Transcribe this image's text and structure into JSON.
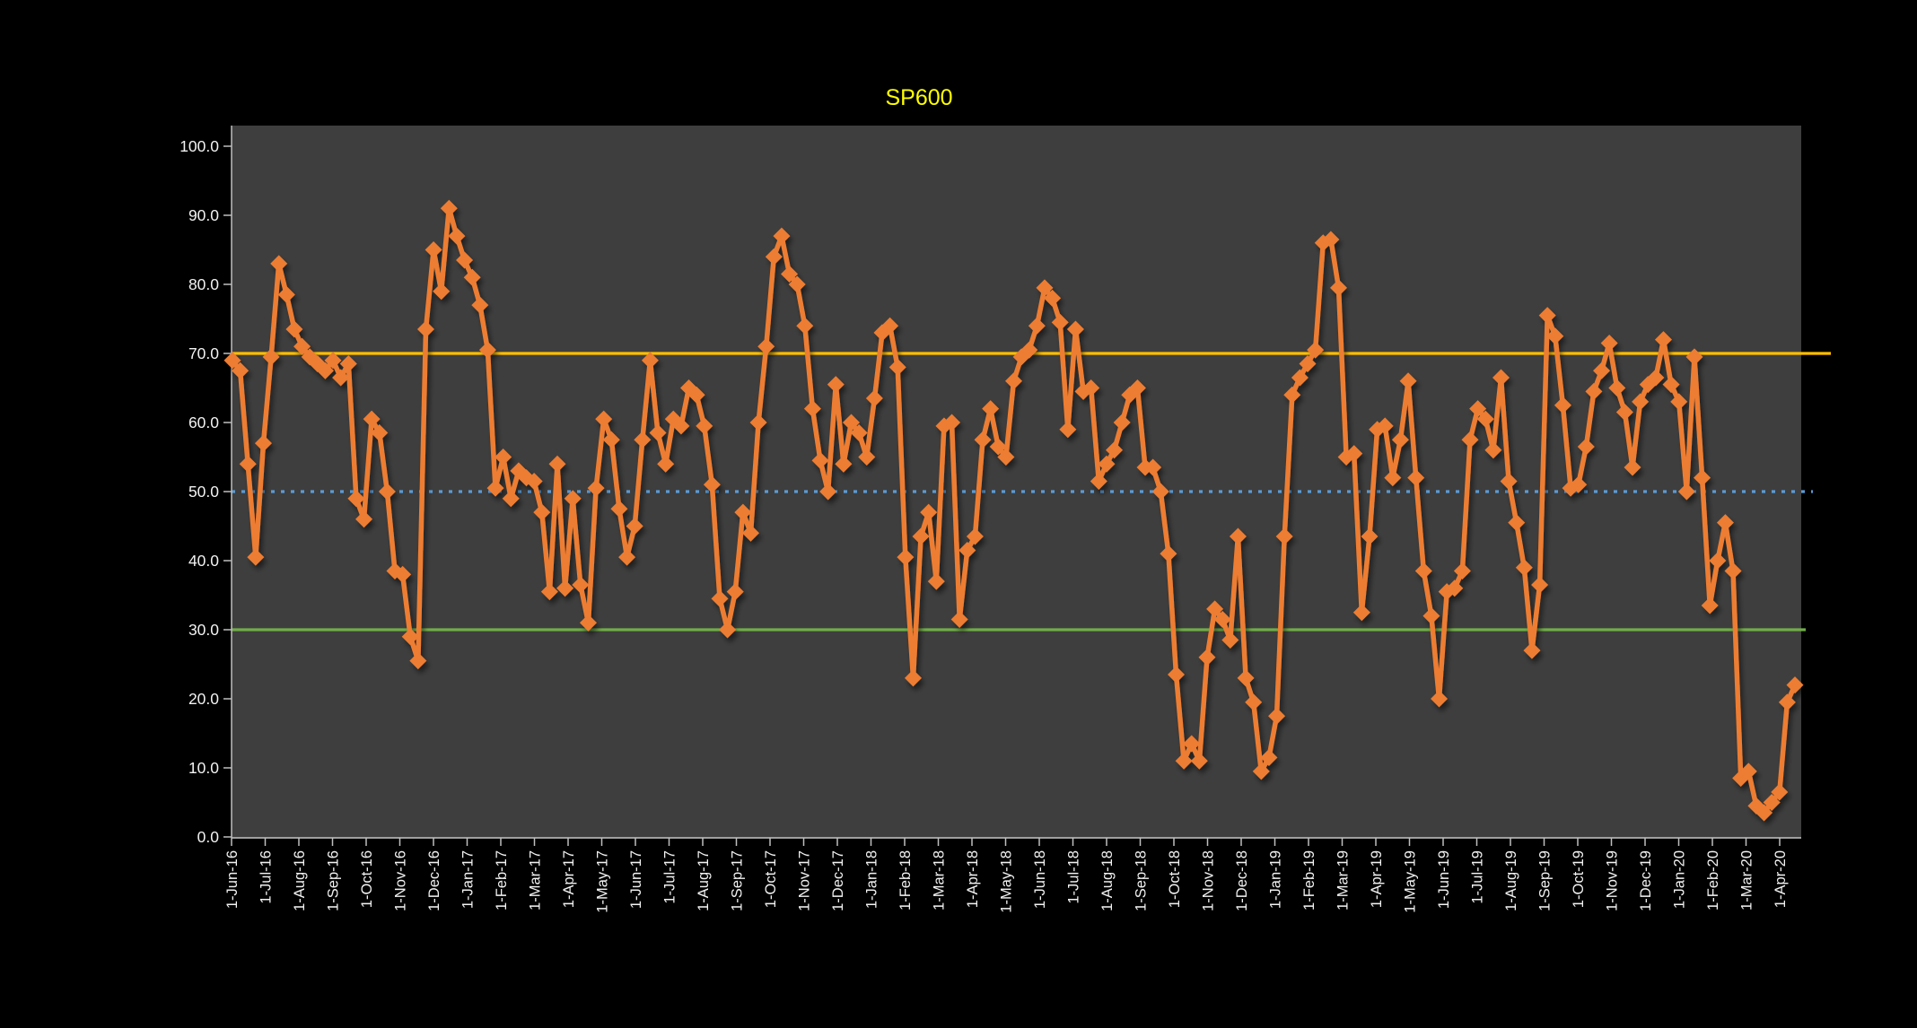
{
  "title": {
    "text": "SP600",
    "color": "#FFFF00"
  },
  "colors": {
    "outer_background": "#000000",
    "plot_background": "#3E3E3E",
    "series_line": "#ED7D31",
    "ref_line_upper": "#FFC000",
    "ref_line_mid": "#5B9BD5",
    "ref_line_lower": "#70AD47",
    "axis_line": "#BFBFBF",
    "tick_label": "#F2F2F2"
  },
  "chart_data": {
    "type": "line",
    "title": "SP600",
    "xlabel": "",
    "ylabel": "",
    "ylim": [
      0,
      100
    ],
    "grid": false,
    "legend_position": "none",
    "marker": "diamond",
    "frequency": "weekly",
    "x_range_labels": [
      "1-Jun-16",
      "1-Apr-20"
    ],
    "y_tick_labels": [
      "0.0",
      "10.0",
      "20.0",
      "30.0",
      "40.0",
      "50.0",
      "60.0",
      "70.0",
      "80.0",
      "90.0",
      "100.0"
    ],
    "y_ticks": [
      0,
      10,
      20,
      30,
      40,
      50,
      60,
      70,
      80,
      90,
      100
    ],
    "x_tick_labels": [
      "1-Jun-16",
      "1-Jul-16",
      "1-Aug-16",
      "1-Sep-16",
      "1-Oct-16",
      "1-Nov-16",
      "1-Dec-16",
      "1-Jan-17",
      "1-Feb-17",
      "1-Mar-17",
      "1-Apr-17",
      "1-May-17",
      "1-Jun-17",
      "1-Jul-17",
      "1-Aug-17",
      "1-Sep-17",
      "1-Oct-17",
      "1-Nov-17",
      "1-Dec-17",
      "1-Jan-18",
      "1-Feb-18",
      "1-Mar-18",
      "1-Apr-18",
      "1-May-18",
      "1-Jun-18",
      "1-Jul-18",
      "1-Aug-18",
      "1-Sep-18",
      "1-Oct-18",
      "1-Nov-18",
      "1-Dec-18",
      "1-Jan-19",
      "1-Feb-19",
      "1-Mar-19",
      "1-Apr-19",
      "1-May-19",
      "1-Jun-19",
      "1-Jul-19",
      "1-Aug-19",
      "1-Sep-19",
      "1-Oct-19",
      "1-Nov-19",
      "1-Dec-19",
      "1-Jan-20",
      "1-Feb-20",
      "1-Mar-20",
      "1-Apr-20"
    ],
    "reference_lines": [
      {
        "name": "upper-threshold",
        "value": 70,
        "style": "solid",
        "color": "#FFC000"
      },
      {
        "name": "mid-threshold",
        "value": 50,
        "style": "dotted",
        "color": "#5B9BD5"
      },
      {
        "name": "lower-threshold",
        "value": 30,
        "style": "solid",
        "color": "#70AD47"
      }
    ],
    "series": [
      {
        "name": "SP600",
        "color": "#ED7D31",
        "values": [
          69,
          67.5,
          54,
          40.5,
          57,
          69.5,
          83,
          78.5,
          73.5,
          71,
          69.5,
          68.5,
          67.5,
          69,
          66.5,
          68.5,
          49,
          46,
          60.5,
          58.5,
          50,
          38.5,
          38,
          29,
          25.5,
          73.5,
          85,
          79,
          91,
          87,
          83.5,
          81,
          77,
          70.5,
          50.5,
          55,
          49,
          53,
          52,
          51.5,
          47,
          35.5,
          54,
          36,
          49,
          36.5,
          31,
          50.5,
          60.5,
          57.5,
          47.5,
          40.5,
          45,
          57.5,
          69,
          58.5,
          54,
          60.5,
          59.5,
          65,
          64,
          59.5,
          51,
          34.5,
          30,
          35.5,
          47,
          44,
          60,
          71,
          84,
          87,
          81.5,
          80,
          74,
          62,
          54.5,
          50,
          65.5,
          54,
          60,
          58.5,
          55,
          63.5,
          73,
          74,
          68,
          40.5,
          23,
          43.5,
          47,
          37,
          59.5,
          60,
          31.5,
          41.5,
          43.5,
          57.5,
          62,
          56.5,
          55,
          66,
          69.5,
          70.5,
          74,
          79.5,
          78,
          74.5,
          59,
          73.5,
          64.5,
          65,
          51.5,
          54,
          56,
          60,
          64,
          65,
          53.5,
          53.5,
          50,
          41,
          23.5,
          11,
          13.5,
          11,
          26,
          33,
          31.5,
          28.5,
          43.5,
          23,
          19.5,
          9.5,
          11.5,
          17.5,
          43.5,
          64,
          66.5,
          68.5,
          70.5,
          86,
          86.5,
          79.5,
          55,
          55.5,
          32.5,
          43.5,
          59,
          59.5,
          52,
          57.5,
          66,
          52,
          38.5,
          32,
          20,
          35.5,
          36,
          38.5,
          57.5,
          62,
          60.5,
          56,
          66.5,
          51.5,
          45.5,
          39,
          27,
          36.5,
          75.5,
          72.5,
          62.5,
          50.5,
          51,
          56.5,
          64.5,
          67.5,
          71.5,
          65,
          61.5,
          53.5,
          63,
          65.5,
          66.5,
          72,
          65.5,
          63,
          50,
          69.5,
          52,
          33.5,
          40,
          45.5,
          38.5,
          8.5,
          9.5,
          4.5,
          3.5,
          5,
          6.5,
          19.5,
          22
        ]
      }
    ]
  }
}
